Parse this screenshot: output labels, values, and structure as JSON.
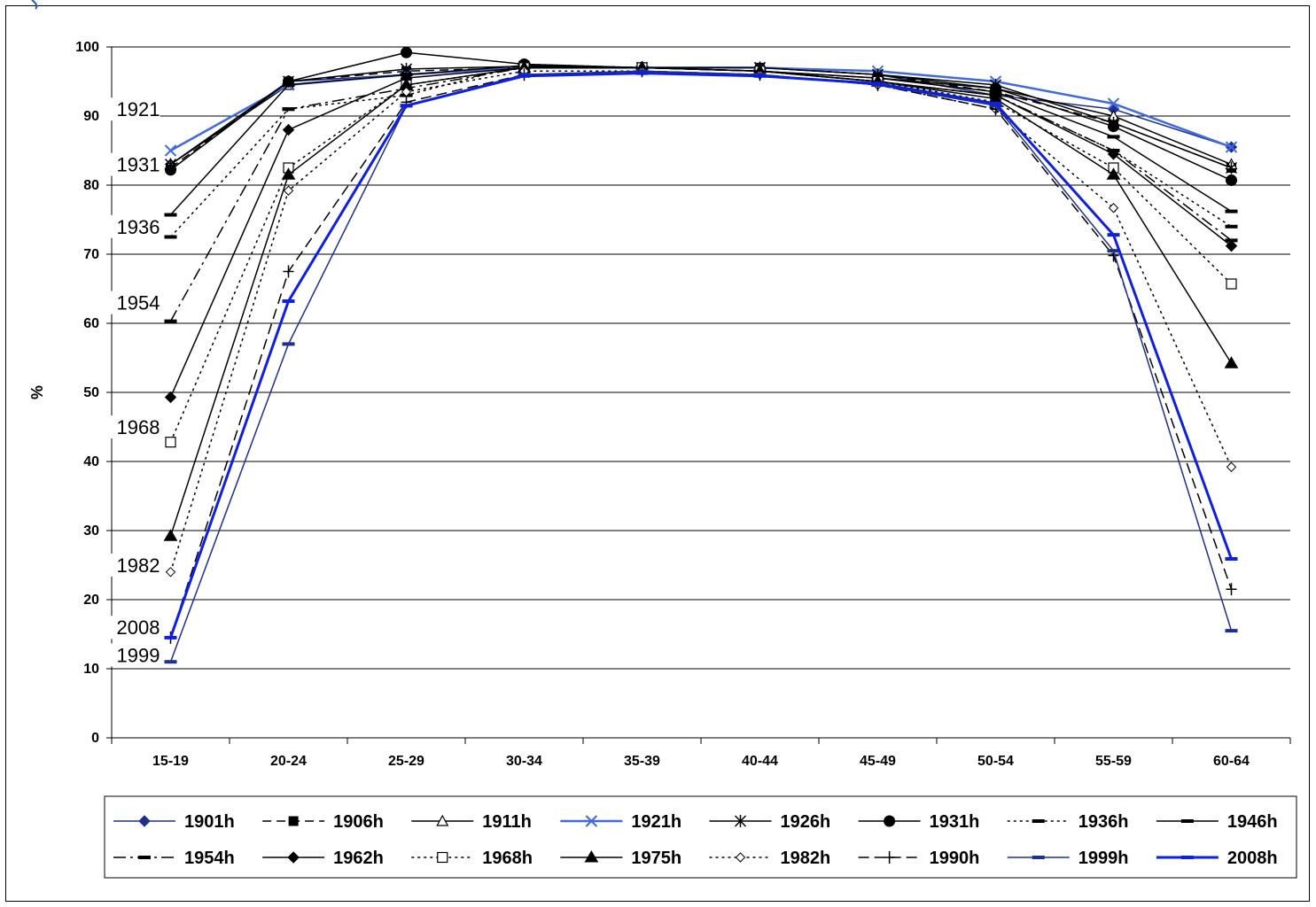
{
  "chart_data": {
    "type": "line",
    "title": "",
    "xlabel": "",
    "ylabel": "%",
    "ylim": [
      0,
      100
    ],
    "yticks": [
      "0",
      "10",
      "20",
      "30",
      "40",
      "50",
      "60",
      "70",
      "80",
      "90",
      "100"
    ],
    "categories": [
      "15-19",
      "20-24",
      "25-29",
      "30-34",
      "35-39",
      "40-44",
      "45-49",
      "50-54",
      "55-59",
      "60-64"
    ],
    "grid": "horizontal",
    "legend_position": "bottom",
    "series": [
      {
        "name": "1901h",
        "color": "#1f2f8f",
        "dash": "",
        "width": 1.5,
        "marker": "diamond",
        "values": [
          83,
          95,
          96,
          97,
          97,
          97,
          96,
          93,
          91,
          85.5
        ]
      },
      {
        "name": "1906h",
        "color": "#000000",
        "dash": "10,6",
        "width": 1.5,
        "marker": "square",
        "values": [
          82.5,
          95,
          96.5,
          97,
          97,
          97,
          96,
          93.5,
          89,
          82.5
        ]
      },
      {
        "name": "1911h",
        "color": "#000000",
        "dash": "",
        "width": 1.5,
        "marker": "triangle-open",
        "values": [
          83,
          94.5,
          96,
          97,
          97,
          97,
          96,
          94,
          90,
          83
        ]
      },
      {
        "name": "1921h",
        "color": "#4169e1",
        "dash": "",
        "width": 2.5,
        "marker": "x",
        "values": [
          85,
          94.5,
          96,
          97,
          97,
          97,
          96.5,
          95,
          91.8,
          85.5
        ]
      },
      {
        "name": "1926h",
        "color": "#000000",
        "dash": "",
        "width": 1.5,
        "marker": "star",
        "values": [
          83,
          95,
          96.8,
          97.2,
          97,
          97,
          96,
          94.5,
          89,
          82.5
        ]
      },
      {
        "name": "1931h",
        "color": "#000000",
        "dash": "",
        "width": 1.5,
        "marker": "circle",
        "values": [
          82.2,
          95,
          99.2,
          97.5,
          97,
          96.5,
          95.5,
          94,
          88.5,
          80.7
        ]
      },
      {
        "name": "1936h",
        "color": "#000000",
        "dash": "3,4",
        "width": 1.5,
        "marker": "dash",
        "values": [
          72.5,
          91,
          93,
          97.5,
          97,
          96.5,
          95,
          93,
          85,
          74
        ]
      },
      {
        "name": "1946h",
        "color": "#000000",
        "dash": "",
        "width": 1.5,
        "marker": "dash",
        "values": [
          75.7,
          94.5,
          96,
          97.3,
          97,
          96.5,
          95.5,
          93.5,
          87,
          76.2
        ]
      },
      {
        "name": "1954h",
        "color": "#000000",
        "dash": "14,5,3,5",
        "width": 1.5,
        "marker": "dash",
        "values": [
          60.3,
          91,
          94,
          97,
          97,
          96.5,
          95,
          93,
          85,
          72
        ]
      },
      {
        "name": "1962h",
        "color": "#000000",
        "dash": "",
        "width": 1.5,
        "marker": "diamond",
        "values": [
          49.3,
          88,
          95.5,
          97,
          97,
          96.5,
          95,
          93,
          84.5,
          71.2
        ]
      },
      {
        "name": "1968h",
        "color": "#000000",
        "dash": "3,4",
        "width": 1.5,
        "marker": "square-open",
        "values": [
          42.8,
          82.5,
          94.5,
          97,
          97,
          96.5,
          95,
          92,
          82.5,
          65.7
        ]
      },
      {
        "name": "1975h",
        "color": "#000000",
        "dash": "",
        "width": 1.5,
        "marker": "triangle",
        "values": [
          29.2,
          81.5,
          94.5,
          97,
          97,
          96.5,
          95,
          92.5,
          81.5,
          54.2
        ]
      },
      {
        "name": "1982h",
        "color": "#000000",
        "dash": "3,4",
        "width": 1.5,
        "marker": "diamond-open",
        "values": [
          24,
          79.2,
          93.5,
          96.5,
          96.5,
          96,
          94.5,
          91,
          76.7,
          39.2
        ]
      },
      {
        "name": "1990h",
        "color": "#000000",
        "dash": "12,6",
        "width": 1.5,
        "marker": "plus",
        "values": [
          14.5,
          67.5,
          92,
          96,
          96.5,
          96,
          94.5,
          91,
          69.8,
          21.5
        ]
      },
      {
        "name": "1999h",
        "color": "#1f2f8f",
        "dash": "",
        "width": 1.5,
        "marker": "dash",
        "values": [
          11,
          57,
          91.5,
          96,
          96.5,
          96,
          94.5,
          91.5,
          70.5,
          15.5
        ]
      },
      {
        "name": "2008h",
        "color": "#0f1fe0",
        "dash": "",
        "width": 3,
        "marker": "dash",
        "values": [
          14.5,
          63.2,
          91.5,
          95.8,
          96.2,
          95.8,
          94.7,
          91.8,
          72.8,
          25.9
        ]
      }
    ],
    "annotations": [
      {
        "text": "1921",
        "at": [
          0,
          91
        ]
      },
      {
        "text": "1931",
        "at": [
          0,
          83
        ]
      },
      {
        "text": "1936",
        "at": [
          0,
          74
        ]
      },
      {
        "text": "1954",
        "at": [
          0,
          63
        ]
      },
      {
        "text": "1968",
        "at": [
          0,
          45
        ]
      },
      {
        "text": "1982",
        "at": [
          0,
          25
        ]
      },
      {
        "text": "2008",
        "at": [
          0,
          16
        ]
      },
      {
        "text": "1999",
        "at": [
          0,
          12
        ]
      }
    ]
  }
}
